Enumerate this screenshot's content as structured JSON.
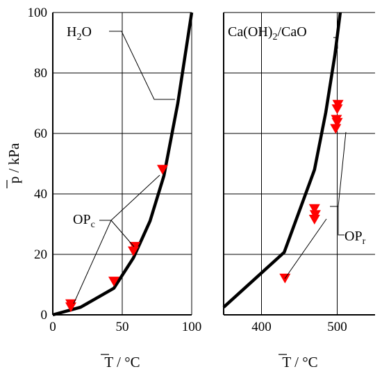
{
  "chart_data": [
    {
      "type": "line",
      "xlabel": "T / °C",
      "ylabel": "p / kPa",
      "xlim": [
        0,
        100
      ],
      "ylim": [
        0,
        100
      ],
      "xticks": [
        "0",
        "50",
        "100"
      ],
      "yticks": [
        "0",
        "20",
        "40",
        "60",
        "80",
        "100"
      ],
      "grid": true,
      "series": [
        {
          "name": "H2O",
          "kind": "curve",
          "x": [
            0,
            20,
            44,
            58,
            70,
            80,
            90,
            100
          ],
          "y": [
            0,
            2.5,
            8.8,
            18.8,
            31,
            46,
            70,
            100
          ]
        },
        {
          "name": "OPc",
          "kind": "markers",
          "x": [
            13,
            13,
            44,
            58,
            59,
            79
          ],
          "y": [
            2.5,
            3.5,
            11,
            21,
            22.5,
            48
          ]
        }
      ],
      "annotations": [
        {
          "text": "H",
          "sub": "2",
          "tail": "O"
        },
        {
          "text": "OP",
          "sub": "c",
          "tail": ""
        }
      ]
    },
    {
      "type": "line",
      "xlabel": "T / °C",
      "xlim": [
        350,
        550
      ],
      "ylim": [
        0,
        100
      ],
      "xticks": [
        "400",
        "500"
      ],
      "grid": true,
      "series": [
        {
          "name": "Ca(OH)2/CaO",
          "kind": "curve",
          "x": [
            350,
            430,
            470,
            485,
            497,
            504
          ],
          "y": [
            2.5,
            20.7,
            48,
            67,
            86,
            100
          ]
        },
        {
          "name": "OPr",
          "kind": "markers",
          "x": [
            431,
            470,
            471,
            470,
            498,
            500,
            499,
            500,
            501
          ],
          "y": [
            12,
            31.5,
            33,
            35,
            61.5,
            63.5,
            64.5,
            68,
            69.5
          ]
        }
      ],
      "annotations": [
        {
          "text": "Ca(OH)",
          "sub": "2",
          "tail": "/CaO"
        },
        {
          "text": "OP",
          "sub": "r",
          "tail": ""
        }
      ]
    }
  ],
  "colors": {
    "curve": "#000000",
    "marker": "#ff0000",
    "grid": "#000000"
  }
}
